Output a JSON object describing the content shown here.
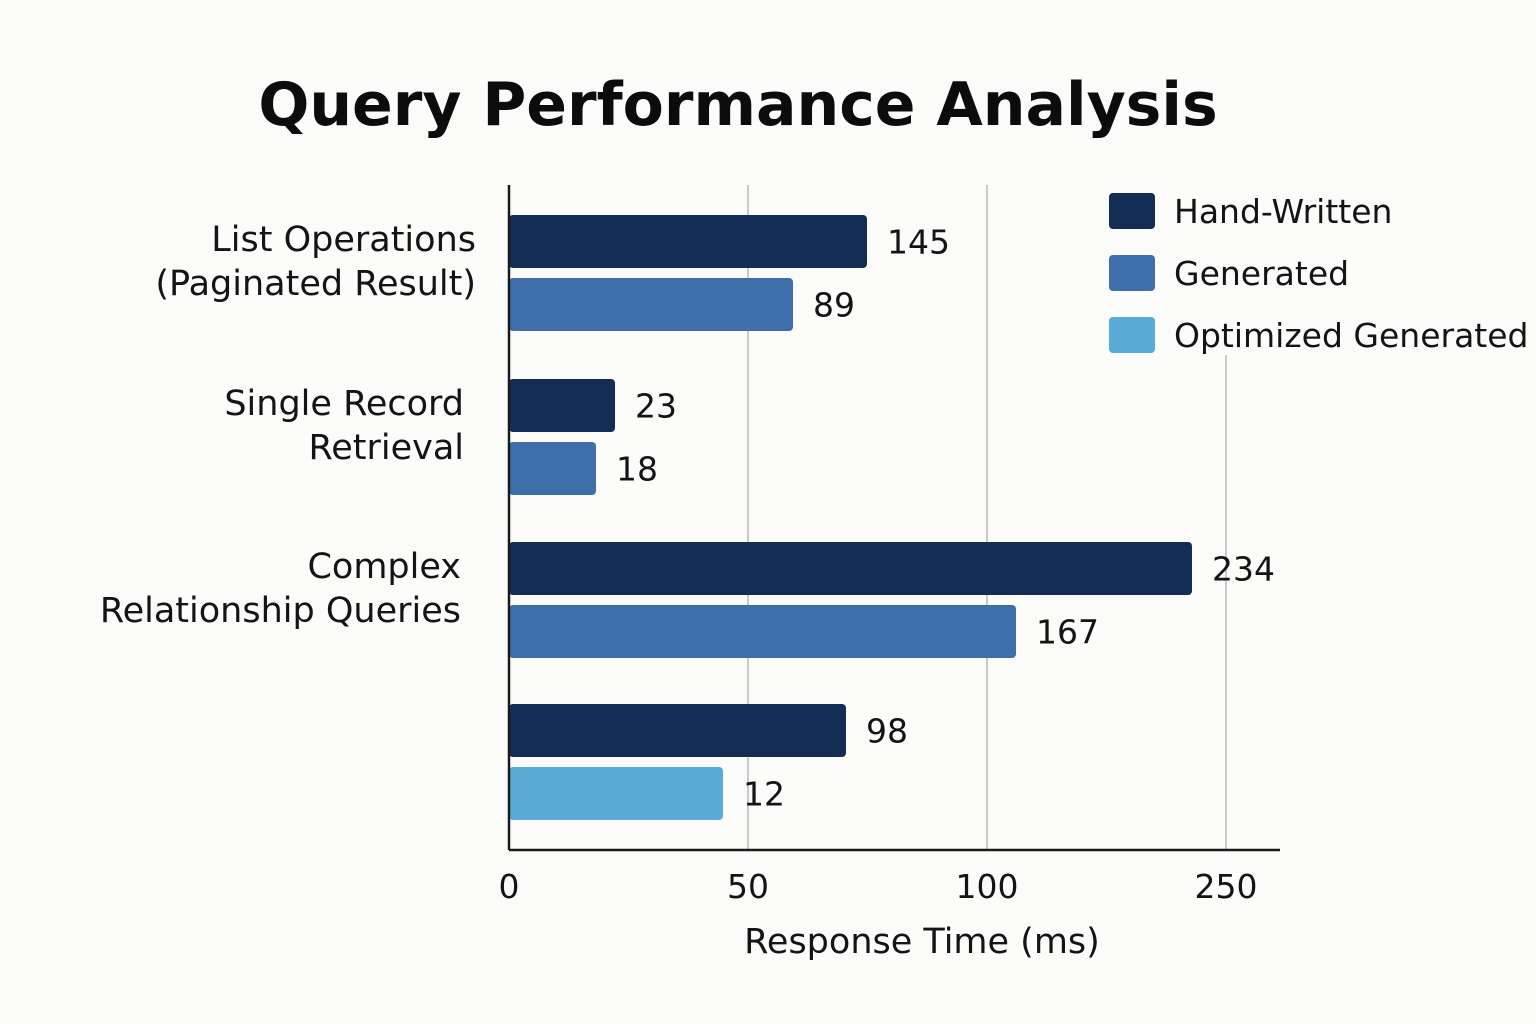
{
  "chart_data": {
    "type": "bar",
    "orientation": "horizontal",
    "title": "Query Performance Analysis",
    "xlabel": "Response Time (ms)",
    "ylabel": "",
    "x_ticks": [
      "0",
      "50",
      "100",
      "250"
    ],
    "grid": true,
    "legend_position": "top-right",
    "groups": [
      {
        "label": [
          "List Operations",
          "(Paginated Result)"
        ],
        "bars": [
          {
            "series": "Hand-Written",
            "value": 145
          },
          {
            "series": "Generated",
            "value": 89
          }
        ]
      },
      {
        "label": [
          "Single Record",
          "Retrieval"
        ],
        "bars": [
          {
            "series": "Hand-Written",
            "value": 23
          },
          {
            "series": "Generated",
            "value": 18
          }
        ]
      },
      {
        "label": [
          "Complex",
          "Relationship Queries"
        ],
        "bars": [
          {
            "series": "Hand-Written",
            "value": 234
          },
          {
            "series": "Generated",
            "value": 167
          }
        ]
      },
      {
        "label": [],
        "bars": [
          {
            "series": "Hand-Written",
            "value": 98
          },
          {
            "series": "Optimized Generated",
            "value": 12
          }
        ]
      }
    ],
    "legend": [
      {
        "name": "Hand-Written",
        "color": "#142d55"
      },
      {
        "name": "Generated",
        "color": "#3e6fab"
      },
      {
        "name": "Optimized Generated",
        "color": "#5aaad6"
      }
    ]
  }
}
